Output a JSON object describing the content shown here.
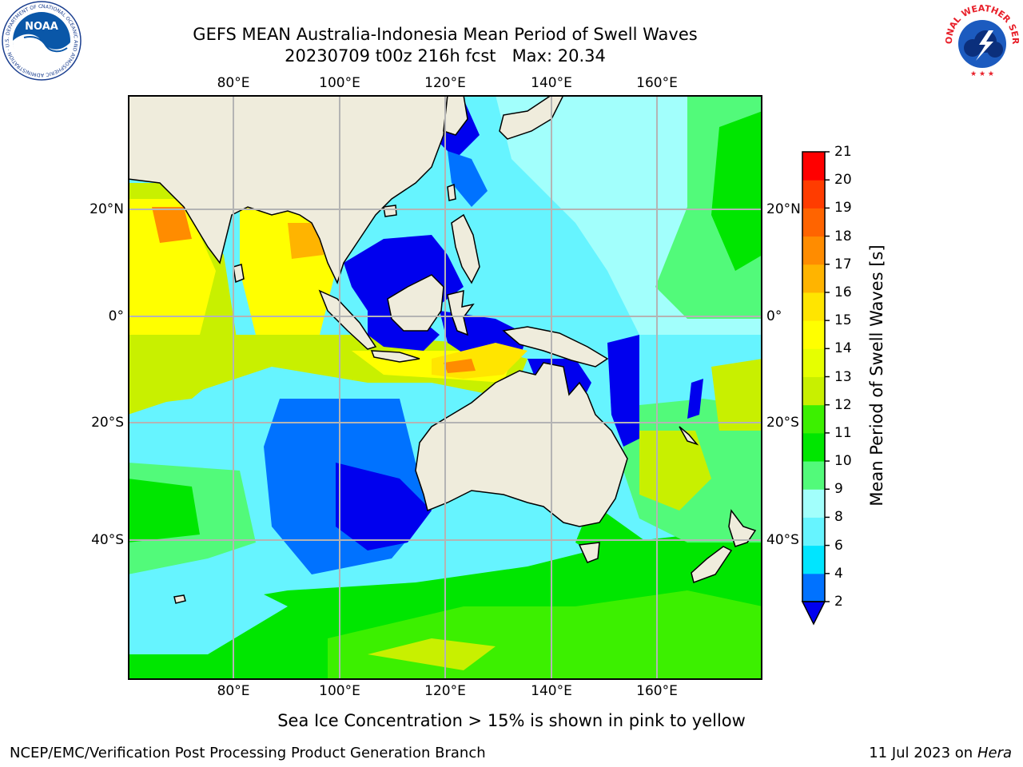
{
  "title": {
    "line1": "GEFS MEAN Australia-Indonesia Mean Period of Swell Waves",
    "line2": "20230709 t00z 216h fcst   Max: 20.34"
  },
  "map": {
    "projection": "lat-lon",
    "lon_range": [
      60,
      180
    ],
    "lat_range": [
      -68,
      42
    ],
    "grid": true,
    "lon_ticks": [
      "80°E",
      "100°E",
      "120°E",
      "140°E",
      "160°E"
    ],
    "lat_ticks": [
      "20°N",
      "0°",
      "20°S",
      "40°S"
    ],
    "land_color": "#efecdc",
    "grid_color": "#b4b4b4"
  },
  "colorbar": {
    "label": "Mean Period of Swell Waves [s]",
    "ticks": [
      "21",
      "20",
      "19",
      "18",
      "17",
      "16",
      "15",
      "14",
      "13",
      "12",
      "11",
      "10",
      "9",
      "8",
      "6",
      "4",
      "2"
    ],
    "levels": [
      2,
      4,
      6,
      8,
      9,
      10,
      11,
      12,
      13,
      14,
      15,
      16,
      17,
      18,
      19,
      20,
      21
    ],
    "colors": [
      "#0072ff",
      "#00e5ff",
      "#66f4ff",
      "#a2fffc",
      "#52fa7a",
      "#00e600",
      "#3cf000",
      "#c8f000",
      "#e6ff00",
      "#ffff00",
      "#ffe500",
      "#ffb400",
      "#ff8c00",
      "#ff6400",
      "#ff3c00",
      "#ff0000"
    ],
    "under_color": "#0000ee"
  },
  "note": "Sea Ice Concentration > 15% is shown in pink to yellow",
  "footer": {
    "left": "NCEP/EMC/Verification Post Processing Product Generation Branch",
    "right_prefix": "11 Jul 2023 on ",
    "right_host": "Hera"
  },
  "logos": {
    "noaa_text": "NOAA",
    "noaa_ring": "NATIONAL OCEANIC AND ATMOSPHERIC ADMINISTRATION · U.S. DEPARTMENT OF COMMERCE ·",
    "nws_ring": "NATIONAL WEATHER SERVICE"
  }
}
